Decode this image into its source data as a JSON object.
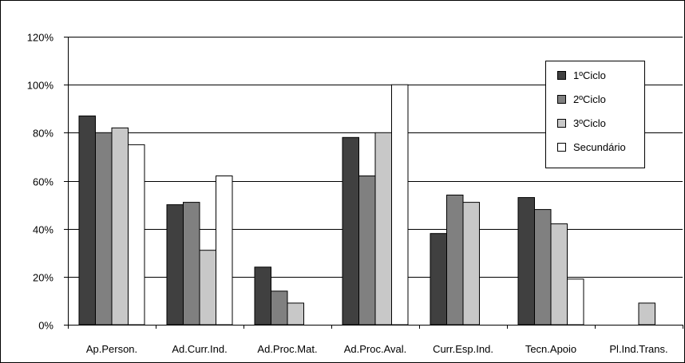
{
  "chart_data": {
    "type": "bar",
    "title": "",
    "xlabel": "",
    "ylabel": "",
    "ylim": [
      0,
      120
    ],
    "y_tick_step": 20,
    "y_tick_suffix": "%",
    "grid": "horizontal",
    "legend_position": "top-right",
    "categories": [
      "Ap.Person.",
      "Ad.Curr.Ind.",
      "Ad.Proc.Mat.",
      "Ad.Proc.Aval.",
      "Curr.Esp.Ind.",
      "Tecn.Apoio",
      "Pl.Ind.Trans."
    ],
    "series": [
      {
        "name": "1ºCiclo",
        "color": "#404040",
        "values": [
          87,
          50,
          24,
          78,
          38,
          53,
          0
        ]
      },
      {
        "name": "2ºCiclo",
        "color": "#808080",
        "values": [
          80,
          51,
          14,
          62,
          54,
          48,
          0
        ]
      },
      {
        "name": "3ºCiclo",
        "color": "#c8c8c8",
        "values": [
          82,
          31,
          9,
          80,
          51,
          42,
          9
        ]
      },
      {
        "name": "Secundário",
        "color": "#ffffff",
        "values": [
          75,
          62,
          0,
          100,
          0,
          19,
          0
        ]
      }
    ]
  }
}
